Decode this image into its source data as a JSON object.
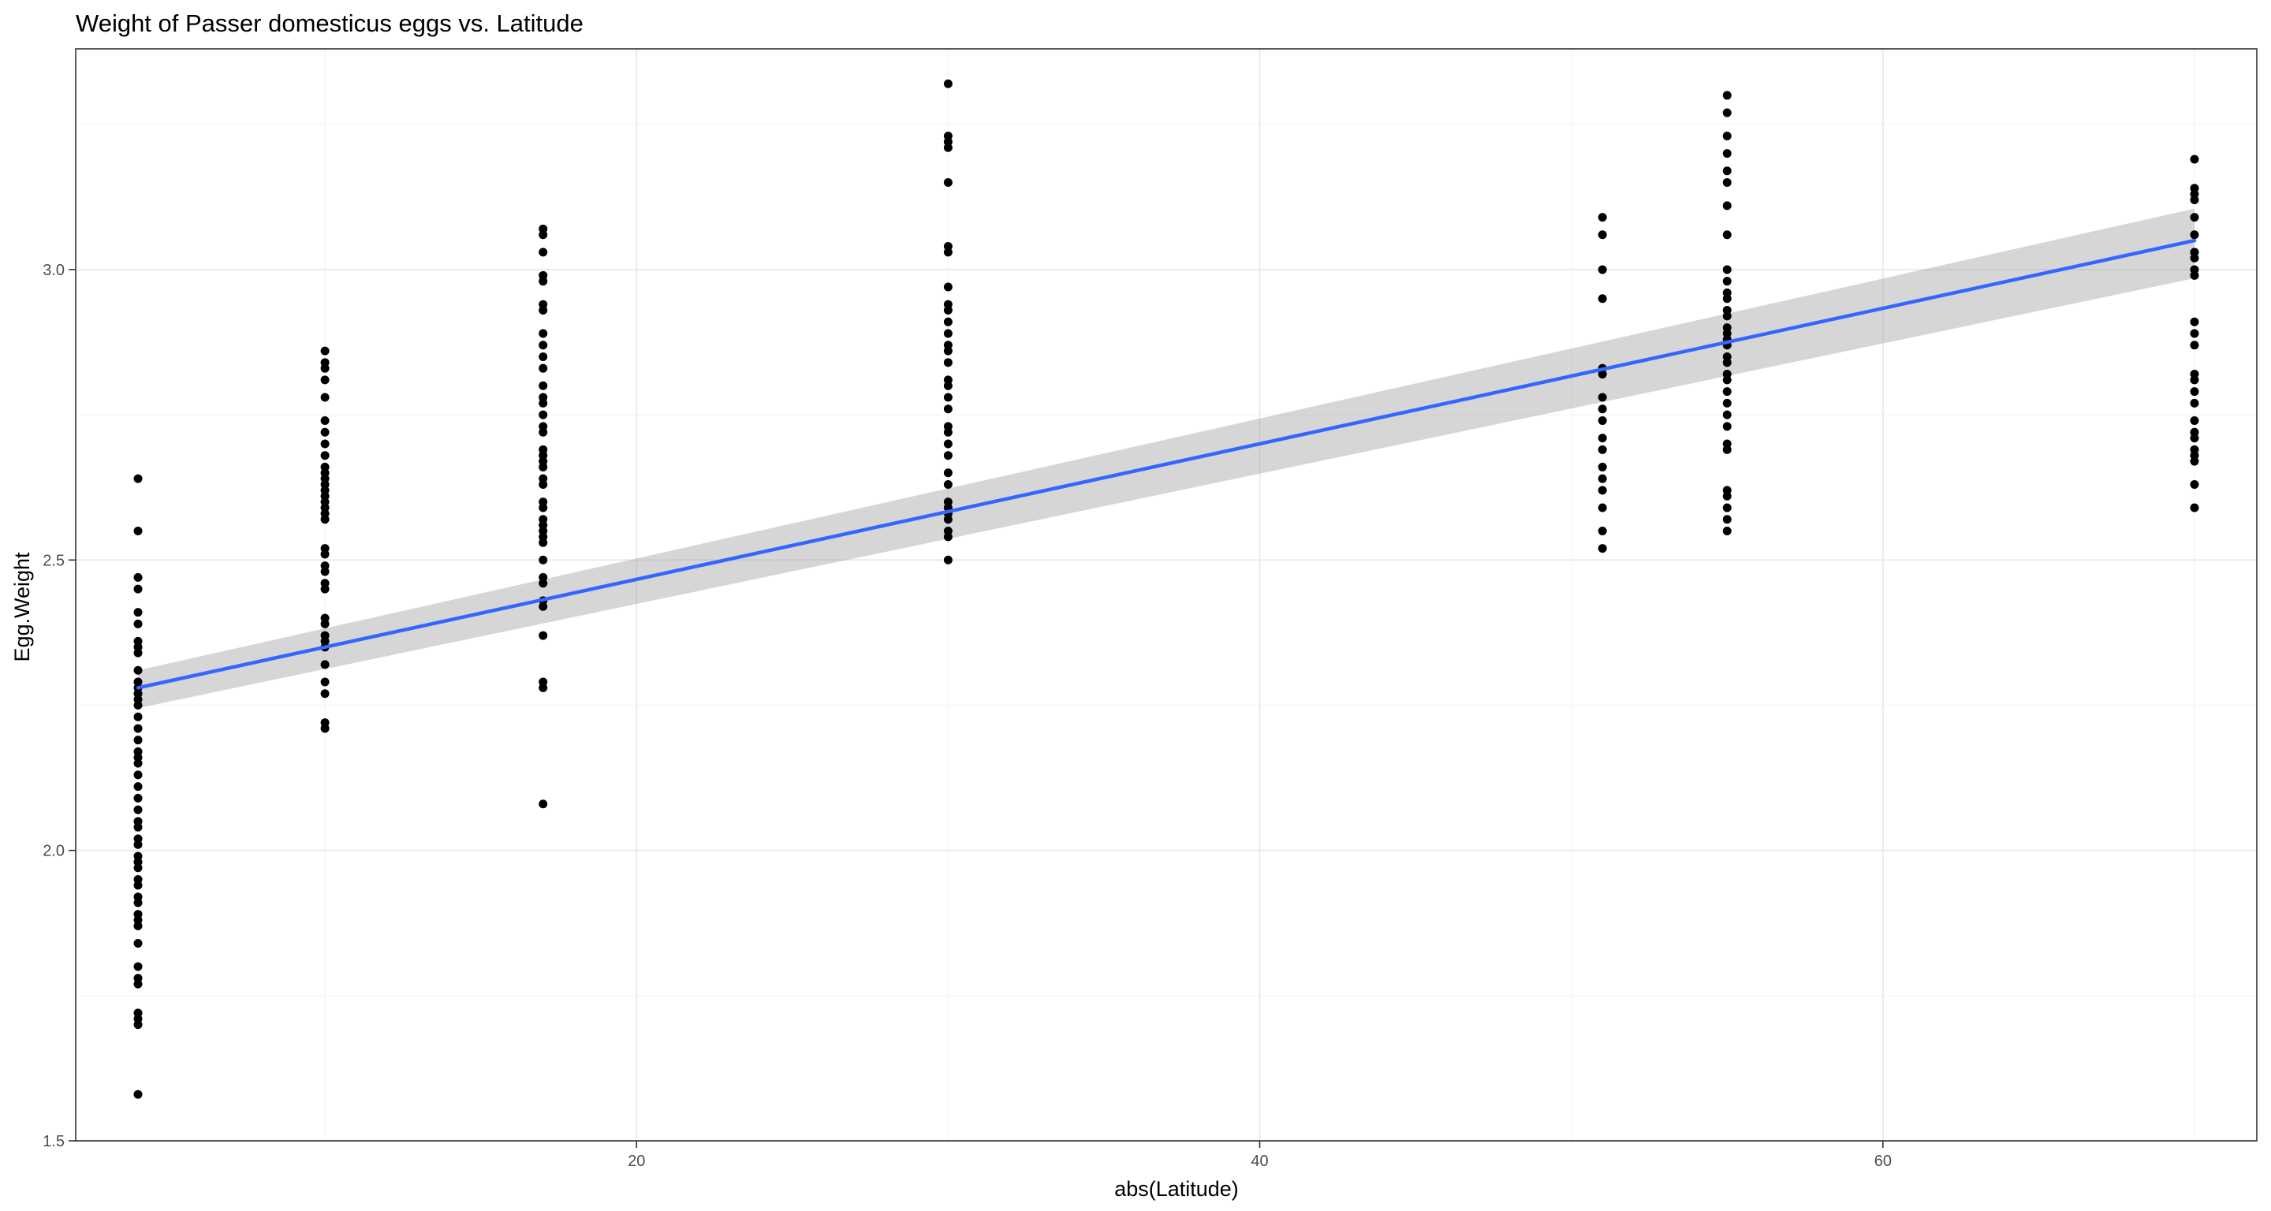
{
  "chart_data": {
    "type": "scatter",
    "title": "Weight of Passer domesticus eggs vs. Latitude",
    "xlabel": "abs(Latitude)",
    "ylabel": "Egg.Weight",
    "xlim": [
      2,
      72
    ],
    "ylim": [
      1.5,
      3.38
    ],
    "x_ticks": [
      20,
      40,
      60
    ],
    "x_tick_labels": [
      "20",
      "40",
      "60"
    ],
    "x_minor_ticks": [
      10,
      30,
      50,
      70
    ],
    "y_ticks": [
      1.5,
      2.0,
      2.5,
      3.0
    ],
    "y_tick_labels": [
      "1.5",
      "2.0",
      "2.5",
      "3.0"
    ],
    "y_minor_ticks": [
      1.75,
      2.25,
      2.75,
      3.25
    ],
    "grid": true,
    "legend": "none",
    "colors": {
      "points": "#000000",
      "fit_line": "#3366ff",
      "ribbon": "#999999"
    },
    "series": [
      {
        "x": 4,
        "y": [
          2.64,
          2.55,
          2.47,
          2.45,
          2.41,
          2.39,
          2.36,
          2.35,
          2.34,
          2.31,
          2.29,
          2.28,
          2.27,
          2.26,
          2.25,
          2.23,
          2.21,
          2.19,
          2.17,
          2.16,
          2.15,
          2.13,
          2.11,
          2.09,
          2.07,
          2.05,
          2.04,
          2.02,
          2.01,
          1.99,
          1.98,
          1.97,
          1.95,
          1.94,
          1.92,
          1.91,
          1.89,
          1.88,
          1.87,
          1.84,
          1.8,
          1.78,
          1.77,
          1.72,
          1.71,
          1.7,
          1.58
        ]
      },
      {
        "x": 10,
        "y": [
          2.86,
          2.84,
          2.83,
          2.81,
          2.78,
          2.74,
          2.72,
          2.7,
          2.68,
          2.66,
          2.65,
          2.64,
          2.63,
          2.62,
          2.61,
          2.6,
          2.59,
          2.58,
          2.57,
          2.52,
          2.51,
          2.49,
          2.48,
          2.46,
          2.45,
          2.4,
          2.39,
          2.37,
          2.36,
          2.35,
          2.32,
          2.29,
          2.27,
          2.22,
          2.21
        ]
      },
      {
        "x": 17,
        "y": [
          3.07,
          3.06,
          3.03,
          2.99,
          2.98,
          2.94,
          2.93,
          2.89,
          2.87,
          2.85,
          2.83,
          2.8,
          2.78,
          2.77,
          2.75,
          2.73,
          2.72,
          2.69,
          2.68,
          2.67,
          2.66,
          2.64,
          2.63,
          2.6,
          2.59,
          2.57,
          2.56,
          2.55,
          2.54,
          2.53,
          2.5,
          2.47,
          2.46,
          2.43,
          2.42,
          2.37,
          2.29,
          2.28,
          2.08
        ]
      },
      {
        "x": 30,
        "y": [
          3.32,
          3.23,
          3.22,
          3.21,
          3.15,
          3.04,
          3.03,
          2.97,
          2.94,
          2.93,
          2.91,
          2.89,
          2.87,
          2.86,
          2.84,
          2.81,
          2.8,
          2.78,
          2.76,
          2.73,
          2.72,
          2.7,
          2.68,
          2.65,
          2.63,
          2.6,
          2.59,
          2.58,
          2.57,
          2.55,
          2.54,
          2.5
        ]
      },
      {
        "x": 51,
        "y": [
          3.09,
          3.06,
          3.0,
          2.95,
          2.83,
          2.82,
          2.78,
          2.76,
          2.74,
          2.71,
          2.69,
          2.66,
          2.64,
          2.62,
          2.59,
          2.55,
          2.52
        ]
      },
      {
        "x": 55,
        "y": [
          3.3,
          3.27,
          3.23,
          3.2,
          3.17,
          3.15,
          3.11,
          3.06,
          3.0,
          2.98,
          2.96,
          2.95,
          2.93,
          2.92,
          2.9,
          2.89,
          2.88,
          2.87,
          2.85,
          2.84,
          2.82,
          2.81,
          2.79,
          2.77,
          2.75,
          2.73,
          2.7,
          2.69,
          2.62,
          2.61,
          2.59,
          2.57,
          2.55
        ]
      },
      {
        "x": 70,
        "y": [
          3.19,
          3.14,
          3.13,
          3.12,
          3.09,
          3.06,
          3.03,
          3.02,
          3.0,
          2.99,
          2.91,
          2.89,
          2.87,
          2.82,
          2.81,
          2.79,
          2.77,
          2.74,
          2.72,
          2.71,
          2.69,
          2.68,
          2.67,
          2.63,
          2.59
        ]
      }
    ],
    "regression": {
      "x": [
        4,
        70
      ],
      "y": [
        2.28,
        3.05
      ],
      "ci_lower": [
        2.245,
        2.985
      ],
      "ci_upper": [
        2.31,
        3.105
      ]
    }
  }
}
